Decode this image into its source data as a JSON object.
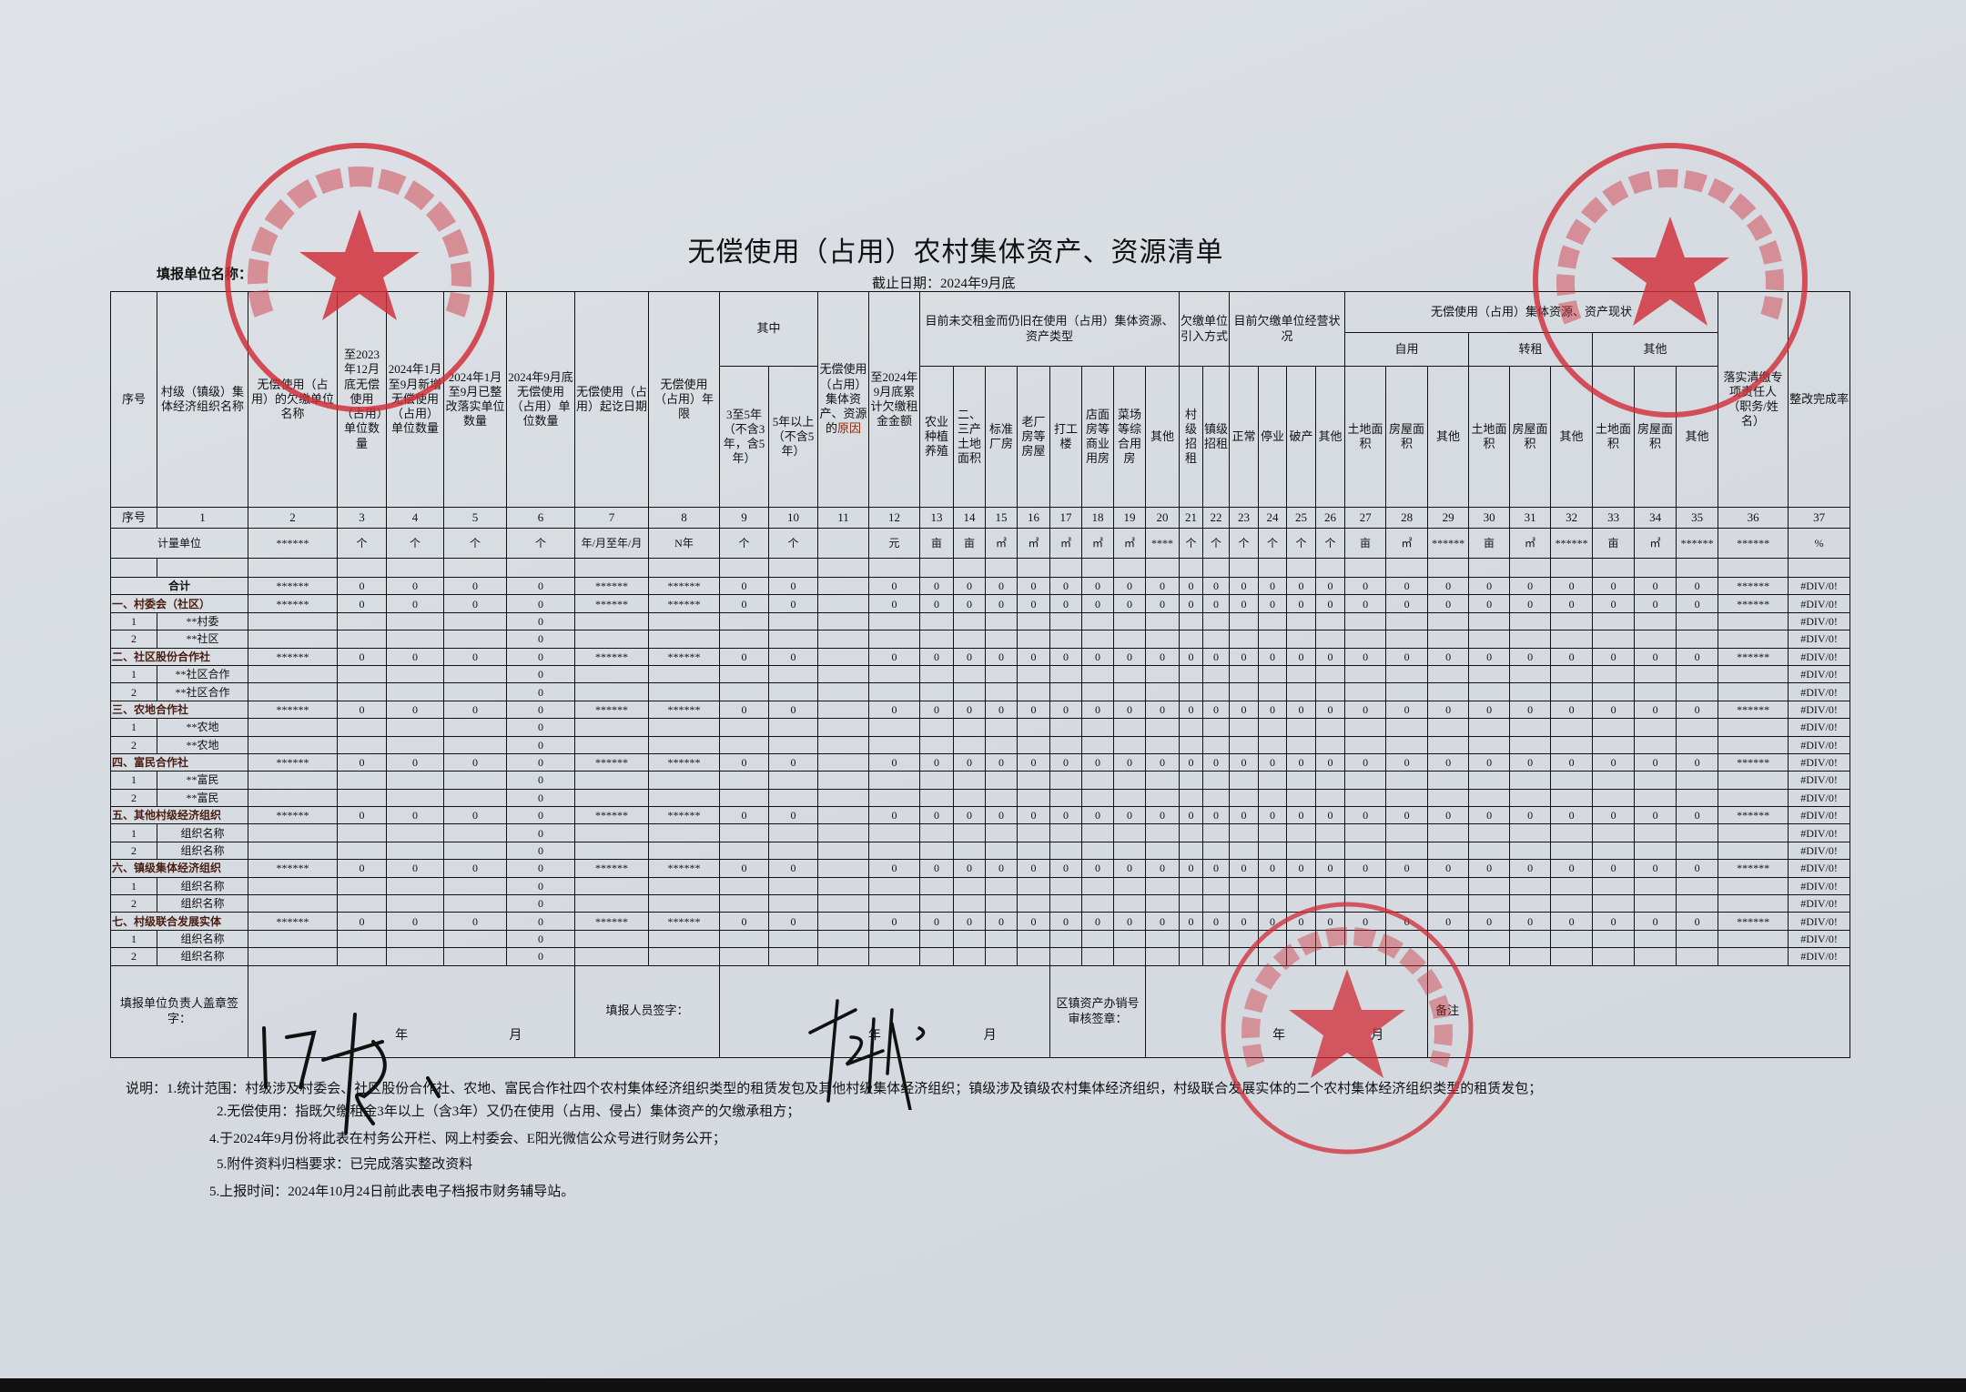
{
  "document": {
    "title": "无偿使用（占用）农村集体资产、资源清单",
    "deadline": "截止日期：2024年9月底",
    "unit_name_label": "填报单位名称："
  },
  "header": {
    "seq": "序号",
    "c1": "村级（镇级）集体经济组织名称",
    "c2": "无偿使用（占用）的欠缴单位名称",
    "c3": "至2023年12月底无偿使用（占用）单位数量",
    "c4": "2024年1月至9月新增无偿使用（占用）单位数量",
    "c5": "2024年1月至9月已整改落实单位数量",
    "c6": "2024年9月底无偿使用（占用）单位数量",
    "c7": "无偿使用（占用）起讫日期",
    "c8": "无偿使用（占用）年限",
    "among": "其中",
    "c9": "3至5年（不含3年，含5年）",
    "c10": "5年以上（不含5年）",
    "c11a": "无偿使用（占用）集体资产、资源的",
    "c11b": "原因",
    "c12": "至2024年9月底累计欠缴租金金额",
    "g_type": "目前未交租金而仍旧在使用（占用）集体资源、资产类型",
    "c13": "农业种植养殖",
    "c14": "二、三产土地面积",
    "c15": "标准厂房",
    "c16": "老厂房等房屋",
    "c17": "打工楼",
    "c18": "店面房等商业用房",
    "c19": "菜场等综合用房",
    "c20": "其他",
    "g_intro": "欠缴单位引入方式",
    "c21": "村级招租",
    "c22": "镇级招租",
    "g_status": "目前欠缴单位经营状况",
    "c23": "正常",
    "c24": "停业",
    "c25": "破产",
    "c26": "其他",
    "g_current": "无偿使用（占用）集体资源、资产现状",
    "self_use": "自用",
    "sublet": "转租",
    "other": "其他",
    "land_area": "土地面积",
    "house_area": "房屋面积",
    "others": "其他",
    "c36": "落实清缴专项责任人（职务/姓名）",
    "c37": "整改完成率"
  },
  "number_row": [
    "序号",
    "1",
    "2",
    "3",
    "4",
    "5",
    "6",
    "7",
    "8",
    "9",
    "10",
    "11",
    "12",
    "13",
    "14",
    "15",
    "16",
    "17",
    "18",
    "19",
    "20",
    "21",
    "22",
    "23",
    "24",
    "25",
    "26",
    "27",
    "28",
    "29",
    "30",
    "31",
    "32",
    "33",
    "34",
    "35",
    "36",
    "37"
  ],
  "unit_row": {
    "label": "计量单位",
    "values": [
      "******",
      "个",
      "个",
      "个",
      "个",
      "年/月至年/月",
      "N年",
      "个",
      "个",
      "",
      "元",
      "亩",
      "亩",
      "㎡",
      "㎡",
      "㎡",
      "㎡",
      "㎡",
      "****",
      "个",
      "个",
      "个",
      "个",
      "个",
      "个",
      "亩",
      "㎡",
      "******",
      "亩",
      "㎡",
      "******",
      "亩",
      "㎡",
      "******",
      "******",
      "%"
    ]
  },
  "rows": [
    {
      "type": "group",
      "label": "合计",
      "values": [
        "******",
        "0",
        "0",
        "0",
        "0",
        "******",
        "******",
        "0",
        "0",
        "",
        "0",
        "0",
        "0",
        "0",
        "0",
        "0",
        "0",
        "0",
        "0",
        "0",
        "0",
        "0",
        "0",
        "0",
        "0",
        "0",
        "0",
        "0",
        "0",
        "0",
        "0",
        "0",
        "0",
        "0",
        "******",
        "#DIV/0!"
      ]
    },
    {
      "type": "group",
      "label": "一、村委会（社区）",
      "values": [
        "******",
        "0",
        "0",
        "0",
        "0",
        "******",
        "******",
        "0",
        "0",
        "",
        "0",
        "0",
        "0",
        "0",
        "0",
        "0",
        "0",
        "0",
        "0",
        "0",
        "0",
        "0",
        "0",
        "0",
        "0",
        "0",
        "0",
        "0",
        "0",
        "0",
        "0",
        "0",
        "0",
        "0",
        "******",
        "#DIV/0!"
      ]
    },
    {
      "type": "sub",
      "seq": "1",
      "label": "**村委",
      "values": [
        "",
        "",
        "",
        "",
        "0",
        "",
        "",
        "",
        "",
        "",
        "",
        "",
        "",
        "",
        "",
        "",
        "",
        "",
        "",
        "",
        "",
        "",
        "",
        "",
        "",
        "",
        "",
        "",
        "",
        "",
        "",
        "",
        "",
        "",
        "",
        "#DIV/0!"
      ]
    },
    {
      "type": "sub",
      "seq": "2",
      "label": "**社区",
      "values": [
        "",
        "",
        "",
        "",
        "0",
        "",
        "",
        "",
        "",
        "",
        "",
        "",
        "",
        "",
        "",
        "",
        "",
        "",
        "",
        "",
        "",
        "",
        "",
        "",
        "",
        "",
        "",
        "",
        "",
        "",
        "",
        "",
        "",
        "",
        "",
        "#DIV/0!"
      ]
    },
    {
      "type": "group",
      "label": "二、社区股份合作社",
      "values": [
        "******",
        "0",
        "0",
        "0",
        "0",
        "******",
        "******",
        "0",
        "0",
        "",
        "0",
        "0",
        "0",
        "0",
        "0",
        "0",
        "0",
        "0",
        "0",
        "0",
        "0",
        "0",
        "0",
        "0",
        "0",
        "0",
        "0",
        "0",
        "0",
        "0",
        "0",
        "0",
        "0",
        "0",
        "******",
        "#DIV/0!"
      ]
    },
    {
      "type": "sub",
      "seq": "1",
      "label": "**社区合作",
      "values": [
        "",
        "",
        "",
        "",
        "0",
        "",
        "",
        "",
        "",
        "",
        "",
        "",
        "",
        "",
        "",
        "",
        "",
        "",
        "",
        "",
        "",
        "",
        "",
        "",
        "",
        "",
        "",
        "",
        "",
        "",
        "",
        "",
        "",
        "",
        "",
        "#DIV/0!"
      ]
    },
    {
      "type": "sub",
      "seq": "2",
      "label": "**社区合作",
      "values": [
        "",
        "",
        "",
        "",
        "0",
        "",
        "",
        "",
        "",
        "",
        "",
        "",
        "",
        "",
        "",
        "",
        "",
        "",
        "",
        "",
        "",
        "",
        "",
        "",
        "",
        "",
        "",
        "",
        "",
        "",
        "",
        "",
        "",
        "",
        "",
        "#DIV/0!"
      ]
    },
    {
      "type": "group",
      "label": "三、农地合作社",
      "values": [
        "******",
        "0",
        "0",
        "0",
        "0",
        "******",
        "******",
        "0",
        "0",
        "",
        "0",
        "0",
        "0",
        "0",
        "0",
        "0",
        "0",
        "0",
        "0",
        "0",
        "0",
        "0",
        "0",
        "0",
        "0",
        "0",
        "0",
        "0",
        "0",
        "0",
        "0",
        "0",
        "0",
        "0",
        "******",
        "#DIV/0!"
      ]
    },
    {
      "type": "sub",
      "seq": "1",
      "label": "**农地",
      "values": [
        "",
        "",
        "",
        "",
        "0",
        "",
        "",
        "",
        "",
        "",
        "",
        "",
        "",
        "",
        "",
        "",
        "",
        "",
        "",
        "",
        "",
        "",
        "",
        "",
        "",
        "",
        "",
        "",
        "",
        "",
        "",
        "",
        "",
        "",
        "",
        "#DIV/0!"
      ]
    },
    {
      "type": "sub",
      "seq": "2",
      "label": "**农地",
      "values": [
        "",
        "",
        "",
        "",
        "0",
        "",
        "",
        "",
        "",
        "",
        "",
        "",
        "",
        "",
        "",
        "",
        "",
        "",
        "",
        "",
        "",
        "",
        "",
        "",
        "",
        "",
        "",
        "",
        "",
        "",
        "",
        "",
        "",
        "",
        "",
        "#DIV/0!"
      ]
    },
    {
      "type": "group",
      "label": "四、富民合作社",
      "values": [
        "******",
        "0",
        "0",
        "0",
        "0",
        "******",
        "******",
        "0",
        "0",
        "",
        "0",
        "0",
        "0",
        "0",
        "0",
        "0",
        "0",
        "0",
        "0",
        "0",
        "0",
        "0",
        "0",
        "0",
        "0",
        "0",
        "0",
        "0",
        "0",
        "0",
        "0",
        "0",
        "0",
        "0",
        "******",
        "#DIV/0!"
      ]
    },
    {
      "type": "sub",
      "seq": "1",
      "label": "**富民",
      "values": [
        "",
        "",
        "",
        "",
        "0",
        "",
        "",
        "",
        "",
        "",
        "",
        "",
        "",
        "",
        "",
        "",
        "",
        "",
        "",
        "",
        "",
        "",
        "",
        "",
        "",
        "",
        "",
        "",
        "",
        "",
        "",
        "",
        "",
        "",
        "",
        "#DIV/0!"
      ]
    },
    {
      "type": "sub",
      "seq": "2",
      "label": "**富民",
      "values": [
        "",
        "",
        "",
        "",
        "0",
        "",
        "",
        "",
        "",
        "",
        "",
        "",
        "",
        "",
        "",
        "",
        "",
        "",
        "",
        "",
        "",
        "",
        "",
        "",
        "",
        "",
        "",
        "",
        "",
        "",
        "",
        "",
        "",
        "",
        "",
        "#DIV/0!"
      ]
    },
    {
      "type": "group",
      "label": "五、其他村级经济组织",
      "values": [
        "******",
        "0",
        "0",
        "0",
        "0",
        "******",
        "******",
        "0",
        "0",
        "",
        "0",
        "0",
        "0",
        "0",
        "0",
        "0",
        "0",
        "0",
        "0",
        "0",
        "0",
        "0",
        "0",
        "0",
        "0",
        "0",
        "0",
        "0",
        "0",
        "0",
        "0",
        "0",
        "0",
        "0",
        "******",
        "#DIV/0!"
      ]
    },
    {
      "type": "sub",
      "seq": "1",
      "label": "组织名称",
      "values": [
        "",
        "",
        "",
        "",
        "0",
        "",
        "",
        "",
        "",
        "",
        "",
        "",
        "",
        "",
        "",
        "",
        "",
        "",
        "",
        "",
        "",
        "",
        "",
        "",
        "",
        "",
        "",
        "",
        "",
        "",
        "",
        "",
        "",
        "",
        "",
        "#DIV/0!"
      ]
    },
    {
      "type": "sub",
      "seq": "2",
      "label": "组织名称",
      "values": [
        "",
        "",
        "",
        "",
        "0",
        "",
        "",
        "",
        "",
        "",
        "",
        "",
        "",
        "",
        "",
        "",
        "",
        "",
        "",
        "",
        "",
        "",
        "",
        "",
        "",
        "",
        "",
        "",
        "",
        "",
        "",
        "",
        "",
        "",
        "",
        "#DIV/0!"
      ]
    },
    {
      "type": "group",
      "label": "六、镇级集体经济组织",
      "values": [
        "******",
        "0",
        "0",
        "0",
        "0",
        "******",
        "******",
        "0",
        "0",
        "",
        "0",
        "0",
        "0",
        "0",
        "0",
        "0",
        "0",
        "0",
        "0",
        "0",
        "0",
        "0",
        "0",
        "0",
        "0",
        "0",
        "0",
        "0",
        "0",
        "0",
        "0",
        "0",
        "0",
        "0",
        "******",
        "#DIV/0!"
      ]
    },
    {
      "type": "sub",
      "seq": "1",
      "label": "组织名称",
      "values": [
        "",
        "",
        "",
        "",
        "0",
        "",
        "",
        "",
        "",
        "",
        "",
        "",
        "",
        "",
        "",
        "",
        "",
        "",
        "",
        "",
        "",
        "",
        "",
        "",
        "",
        "",
        "",
        "",
        "",
        "",
        "",
        "",
        "",
        "",
        "",
        "#DIV/0!"
      ]
    },
    {
      "type": "sub",
      "seq": "2",
      "label": "组织名称",
      "values": [
        "",
        "",
        "",
        "",
        "0",
        "",
        "",
        "",
        "",
        "",
        "",
        "",
        "",
        "",
        "",
        "",
        "",
        "",
        "",
        "",
        "",
        "",
        "",
        "",
        "",
        "",
        "",
        "",
        "",
        "",
        "",
        "",
        "",
        "",
        "",
        "#DIV/0!"
      ]
    },
    {
      "type": "group",
      "label": "七、村级联合发展实体",
      "values": [
        "******",
        "0",
        "0",
        "0",
        "0",
        "******",
        "******",
        "0",
        "0",
        "",
        "0",
        "0",
        "0",
        "0",
        "0",
        "0",
        "0",
        "0",
        "0",
        "0",
        "0",
        "0",
        "0",
        "0",
        "0",
        "0",
        "0",
        "0",
        "0",
        "0",
        "0",
        "0",
        "0",
        "0",
        "******",
        "#DIV/0!"
      ]
    },
    {
      "type": "sub",
      "seq": "1",
      "label": "组织名称",
      "values": [
        "",
        "",
        "",
        "",
        "0",
        "",
        "",
        "",
        "",
        "",
        "",
        "",
        "",
        "",
        "",
        "",
        "",
        "",
        "",
        "",
        "",
        "",
        "",
        "",
        "",
        "",
        "",
        "",
        "",
        "",
        "",
        "",
        "",
        "",
        "",
        "#DIV/0!"
      ]
    },
    {
      "type": "sub",
      "seq": "2",
      "label": "组织名称",
      "values": [
        "",
        "",
        "",
        "",
        "0",
        "",
        "",
        "",
        "",
        "",
        "",
        "",
        "",
        "",
        "",
        "",
        "",
        "",
        "",
        "",
        "",
        "",
        "",
        "",
        "",
        "",
        "",
        "",
        "",
        "",
        "",
        "",
        "",
        "",
        "",
        "#DIV/0!"
      ]
    }
  ],
  "signature": {
    "unit_head_label": "填报单位负责人盖章签字：",
    "filler_label": "填报人员签字：",
    "town_office_label": "区镇资产办销号审核签章：",
    "remarks_label": "备注",
    "year": "年",
    "month": "月"
  },
  "notes": [
    "说明：1.统计范围：村级涉及村委会、社区股份合作社、农地、富民合作社四个农村集体经济组织类型的租赁发包及其他村级集体经济组织；镇级涉及镇级农村集体经济组织，村级联合发展实体的二个农村集体经济组织类型的租赁发包；",
    "2.无偿使用：指既欠缴租金3年以上（含3年）又仍在使用（占用、侵占）集体资产的欠缴承租方；",
    "4.于2024年9月份将此表在村务公开栏、网上村委会、E阳光微信公众号进行财务公开；",
    "5.附件资料归档要求：已完成落实整改资料",
    "5.上报时间：2024年10月24日前此表电子档报市财务辅导站。"
  ],
  "stamps": [
    {
      "text": "昆山市张浦镇三家村村民委员会",
      "code": "3205830429..."
    },
    {
      "text": "昆山市张浦镇三家村村务监督委员会",
      "code": "320583042920..."
    },
    {
      "text": "昆山市张浦镇农村工作办公室",
      "code": "32058319219..."
    }
  ],
  "colors": {
    "stamp_red": "#d22b36",
    "paper": "#d9dde2",
    "ink": "#111111"
  }
}
